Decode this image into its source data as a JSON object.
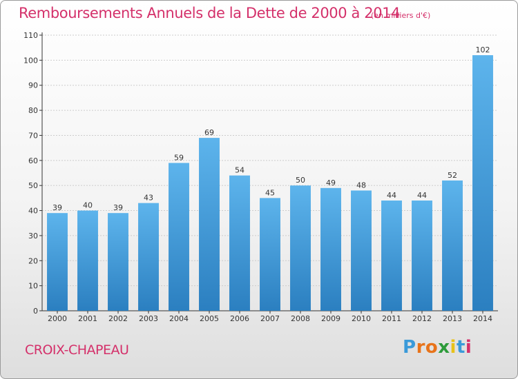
{
  "header": {
    "title": "Remboursements Annuels de la Dette de 2000 à 2014",
    "unit": "(en milliers d'€)"
  },
  "footer": {
    "commune": "CROIX-CHAPEAU",
    "logo_text": "Proxiti",
    "logo_colors": [
      "#3a9ad9",
      "#e8731a",
      "#e8731a",
      "#2d9b3a",
      "#e8c21a",
      "#3a9ad9",
      "#d4306a"
    ]
  },
  "colors": {
    "bar": "#3a97d8",
    "bar_light": "#5db4ec",
    "bar_dark": "#2b7fc0",
    "axis": "#333333",
    "grid": "#cccccc",
    "title": "#d4306a"
  },
  "chart_data": {
    "type": "bar",
    "categories": [
      "2000",
      "2001",
      "2002",
      "2003",
      "2004",
      "2005",
      "2006",
      "2007",
      "2008",
      "2009",
      "2010",
      "2011",
      "2012",
      "2013",
      "2014"
    ],
    "values": [
      39,
      40,
      39,
      43,
      59,
      69,
      54,
      45,
      50,
      49,
      48,
      44,
      44,
      52,
      102
    ],
    "title": "Remboursements Annuels de la Dette de 2000 à 2014",
    "subtitle": "(en milliers d'€)",
    "xlabel": "",
    "ylabel": "",
    "ylim": [
      0,
      110
    ],
    "yticks": [
      0,
      10,
      20,
      30,
      40,
      50,
      60,
      70,
      80,
      90,
      100,
      110
    ],
    "grid": true,
    "data_labels": true
  }
}
